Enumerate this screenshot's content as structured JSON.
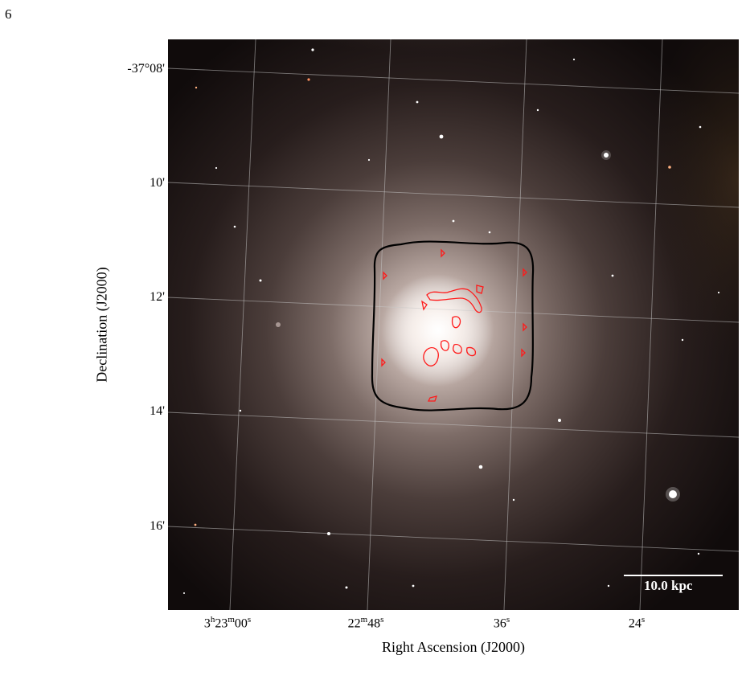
{
  "page_number": "6",
  "image": {
    "description_icon": "galaxy-image",
    "colors": {
      "contour": "#ff0000",
      "footprint": "#000000",
      "grid": "#bfbfbf",
      "scalebar": "#ffffff"
    }
  },
  "axes": {
    "x_label": "Right Ascension (J2000)",
    "y_label": "Declination (J2000)",
    "x_ticks": [
      {
        "h": "3",
        "hs": "h",
        "m": "23",
        "ms": "m",
        "s": "00",
        "ss": "s"
      },
      {
        "m": "22",
        "ms": "m",
        "s": "48",
        "ss": "s"
      },
      {
        "s": "36",
        "ss": "s"
      },
      {
        "s": "24",
        "ss": "s"
      }
    ],
    "y_ticks": [
      "-37°08'",
      "10'",
      "12'",
      "14'",
      "16'"
    ]
  },
  "scale_bar": {
    "label": "10.0 kpc"
  }
}
